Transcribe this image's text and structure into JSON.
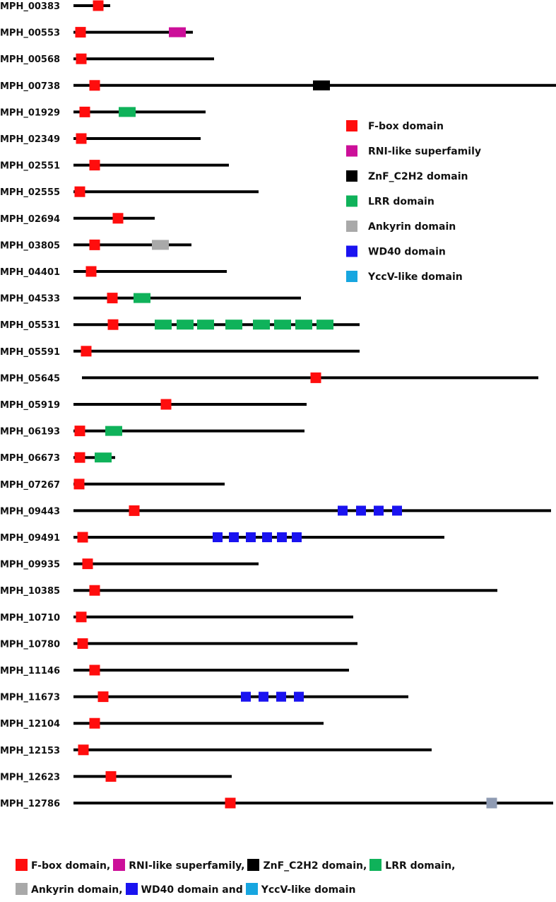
{
  "domains": {
    "fbox": {
      "name": "F-box domain",
      "color": "#ff0d0d"
    },
    "rni": {
      "name": "RNI-like superfamily",
      "color": "#cc0f99"
    },
    "znf": {
      "name": "ZnF_C2H2 domain",
      "color": "#000000"
    },
    "lrr": {
      "name": "LRR domain",
      "color": "#0fb25a"
    },
    "ank": {
      "name": "Ankyrin domain",
      "color": "#a9a9a9"
    },
    "wd40": {
      "name": "WD40 domain",
      "color": "#1a13f0"
    },
    "yccv": {
      "name": "YccV-like domain",
      "color": "#17a6e0"
    },
    "unlabeled_gray": {
      "color": "#8f9bb3"
    }
  },
  "legend_order": [
    "fbox",
    "rni",
    "znf",
    "lrr",
    "ank",
    "wd40",
    "yccv"
  ],
  "proteins": [
    {
      "id": "MPH_00383",
      "start": 104,
      "end": 156,
      "domains": [
        [
          "fbox",
          139
        ]
      ]
    },
    {
      "id": "MPH_00553",
      "start": 104,
      "end": 273,
      "domains": [
        [
          "fbox",
          114
        ],
        [
          "rni",
          251
        ]
      ]
    },
    {
      "id": "MPH_00568",
      "start": 104,
      "end": 303,
      "domains": [
        [
          "fbox",
          115
        ]
      ]
    },
    {
      "id": "MPH_00738",
      "start": 104,
      "end": 787,
      "domains": [
        [
          "fbox",
          134
        ],
        [
          "znf",
          455
        ]
      ]
    },
    {
      "id": "MPH_01929",
      "start": 104,
      "end": 291,
      "domains": [
        [
          "fbox",
          120
        ],
        [
          "lrr",
          180
        ]
      ]
    },
    {
      "id": "MPH_02349",
      "start": 104,
      "end": 284,
      "domains": [
        [
          "fbox",
          115
        ]
      ]
    },
    {
      "id": "MPH_02551",
      "start": 104,
      "end": 324,
      "domains": [
        [
          "fbox",
          134
        ]
      ]
    },
    {
      "id": "MPH_02555",
      "start": 104,
      "end": 366,
      "domains": [
        [
          "fbox",
          113
        ]
      ]
    },
    {
      "id": "MPH_02694",
      "start": 104,
      "end": 219,
      "domains": [
        [
          "fbox",
          167
        ]
      ]
    },
    {
      "id": "MPH_03805",
      "start": 104,
      "end": 271,
      "domains": [
        [
          "fbox",
          134
        ],
        [
          "ank",
          227
        ]
      ]
    },
    {
      "id": "MPH_04401",
      "start": 104,
      "end": 321,
      "domains": [
        [
          "fbox",
          129
        ]
      ]
    },
    {
      "id": "MPH_04533",
      "start": 104,
      "end": 426,
      "domains": [
        [
          "fbox",
          159
        ],
        [
          "lrr",
          201
        ]
      ]
    },
    {
      "id": "MPH_05531",
      "start": 104,
      "end": 509,
      "domains": [
        [
          "fbox",
          160
        ],
        [
          "lrr",
          231
        ],
        [
          "lrr",
          262
        ],
        [
          "lrr",
          291
        ],
        [
          "lrr",
          331
        ],
        [
          "lrr",
          370
        ],
        [
          "lrr",
          400
        ],
        [
          "lrr",
          430
        ],
        [
          "lrr",
          460
        ]
      ]
    },
    {
      "id": "MPH_05591",
      "start": 104,
      "end": 509,
      "domains": [
        [
          "fbox",
          122
        ]
      ]
    },
    {
      "id": "MPH_05645",
      "start": 116,
      "end": 762,
      "domains": [
        [
          "fbox",
          447
        ]
      ]
    },
    {
      "id": "MPH_05919",
      "start": 104,
      "end": 434,
      "domains": [
        [
          "fbox",
          235
        ]
      ]
    },
    {
      "id": "MPH_06193",
      "start": 104,
      "end": 431,
      "domains": [
        [
          "fbox",
          113
        ],
        [
          "lrr",
          161
        ]
      ]
    },
    {
      "id": "MPH_06673",
      "start": 104,
      "end": 163,
      "domains": [
        [
          "fbox",
          113
        ],
        [
          "lrr",
          146
        ]
      ]
    },
    {
      "id": "MPH_07267",
      "start": 104,
      "end": 318,
      "domains": [
        [
          "fbox",
          112
        ]
      ]
    },
    {
      "id": "MPH_09443",
      "start": 104,
      "end": 780,
      "domains": [
        [
          "fbox",
          190
        ],
        [
          "wd40",
          485
        ],
        [
          "wd40",
          511
        ],
        [
          "wd40",
          536
        ],
        [
          "wd40",
          562
        ]
      ]
    },
    {
      "id": "MPH_09491",
      "start": 104,
      "end": 629,
      "domains": [
        [
          "fbox",
          117
        ],
        [
          "wd40",
          308
        ],
        [
          "wd40",
          331
        ],
        [
          "wd40",
          355
        ],
        [
          "wd40",
          378
        ],
        [
          "wd40",
          399
        ],
        [
          "wd40",
          420
        ]
      ]
    },
    {
      "id": "MPH_09935",
      "start": 104,
      "end": 366,
      "domains": [
        [
          "fbox",
          124
        ]
      ]
    },
    {
      "id": "MPH_10385",
      "start": 104,
      "end": 704,
      "domains": [
        [
          "fbox",
          134
        ]
      ]
    },
    {
      "id": "MPH_10710",
      "start": 104,
      "end": 500,
      "domains": [
        [
          "fbox",
          115
        ]
      ]
    },
    {
      "id": "MPH_10780",
      "start": 104,
      "end": 506,
      "domains": [
        [
          "fbox",
          117
        ]
      ]
    },
    {
      "id": "MPH_11146",
      "start": 104,
      "end": 494,
      "domains": [
        [
          "fbox",
          134
        ]
      ]
    },
    {
      "id": "MPH_11673",
      "start": 104,
      "end": 578,
      "domains": [
        [
          "fbox",
          146
        ],
        [
          "wd40",
          348
        ],
        [
          "wd40",
          373
        ],
        [
          "wd40",
          398
        ],
        [
          "wd40",
          423
        ]
      ]
    },
    {
      "id": "MPH_12104",
      "start": 104,
      "end": 458,
      "domains": [
        [
          "fbox",
          134
        ]
      ]
    },
    {
      "id": "MPH_12153",
      "start": 104,
      "end": 611,
      "domains": [
        [
          "fbox",
          118
        ]
      ]
    },
    {
      "id": "MPH_12623",
      "start": 104,
      "end": 328,
      "domains": [
        [
          "fbox",
          157
        ]
      ]
    },
    {
      "id": "MPH_12786",
      "start": 104,
      "end": 783,
      "domains": [
        [
          "fbox",
          326
        ],
        [
          "unlabeled_gray",
          696
        ]
      ]
    }
  ],
  "caption": {
    "line1": [
      {
        "key": "fbox",
        "text": "F-box domain,"
      },
      {
        "key": "rni",
        "text": "RNI-like superfamily,"
      },
      {
        "key": "znf",
        "text": "ZnF_C2H2 domain,"
      },
      {
        "key": "lrr",
        "text": "LRR domain,"
      }
    ],
    "line2": [
      {
        "key": "ank",
        "text": "Ankyrin domain,"
      },
      {
        "key": "wd40",
        "text": "WD40 domain and"
      },
      {
        "key": "yccv",
        "text": "YccV-like domain"
      }
    ]
  }
}
